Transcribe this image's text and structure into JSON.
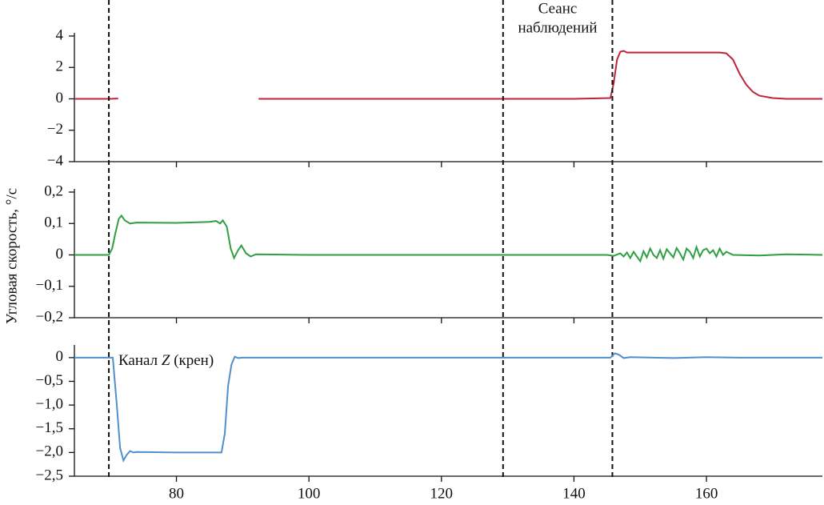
{
  "chart_data": [
    {
      "type": "line",
      "xlim": [
        64.6,
        177.5
      ],
      "ylim": [
        -4,
        4
      ],
      "yticks": [
        4,
        2,
        0,
        {
          "value": -2,
          "label": "−2"
        },
        {
          "value": -4,
          "label": "−4"
        }
      ],
      "vlines": [
        69.8,
        129.3,
        145.8
      ],
      "annotations": [
        {
          "text": [
            "Сеанс",
            "наблюдений"
          ]
        }
      ],
      "x": [
        64.6,
        70,
        71.2,
        71.5,
        92.4,
        100,
        140,
        145.5,
        146,
        146.5,
        147,
        147.5,
        148,
        155,
        162,
        163,
        164,
        165,
        166,
        167,
        168,
        170,
        172,
        177.5
      ],
      "series": [
        {
          "color": "#c0243a",
          "values": [
            0,
            0,
            0.02,
            null,
            0,
            0,
            0,
            0.05,
            1.0,
            2.5,
            3.0,
            3.05,
            2.95,
            2.95,
            2.95,
            2.9,
            2.5,
            1.6,
            0.9,
            0.45,
            0.2,
            0.05,
            0,
            0
          ]
        }
      ]
    },
    {
      "type": "line",
      "xlim": [
        64.6,
        177.5
      ],
      "ylim": [
        -0.2,
        0.2
      ],
      "ylabel": "Угловая скорость, °/с",
      "yticks": [
        {
          "value": 0.2,
          "label": "0,2"
        },
        {
          "value": 0.1,
          "label": "0,1"
        },
        0,
        {
          "value": -0.1,
          "label": "−0,1"
        },
        {
          "value": -0.2,
          "label": "−0,2"
        }
      ],
      "x": [
        64.6,
        69.8,
        70.3,
        70.8,
        71.3,
        71.7,
        72.2,
        73,
        74,
        80,
        85,
        86,
        86.6,
        87,
        87.6,
        88.2,
        88.7,
        89.3,
        89.8,
        90.5,
        91.2,
        92,
        100,
        110,
        120,
        130,
        140,
        145,
        146,
        147,
        147.5,
        148,
        148.5,
        149,
        149.5,
        150,
        150.5,
        151,
        151.5,
        152,
        152.5,
        153,
        153.5,
        154,
        154.5,
        155,
        155.5,
        156,
        156.5,
        157,
        157.5,
        158,
        158.5,
        159,
        159.5,
        160,
        160.5,
        161,
        161.5,
        162,
        162.5,
        163,
        164,
        168,
        172,
        177.5
      ],
      "series": [
        {
          "color": "#2ea043",
          "values": [
            0,
            0,
            0.02,
            0.07,
            0.115,
            0.125,
            0.11,
            0.1,
            0.103,
            0.102,
            0.105,
            0.108,
            0.1,
            0.11,
            0.09,
            0.02,
            -0.01,
            0.015,
            0.03,
            0.005,
            -0.005,
            0.002,
            0,
            0,
            0,
            0,
            0,
            0,
            -0.003,
            0.005,
            -0.005,
            0.008,
            -0.01,
            0.01,
            -0.005,
            -0.02,
            0.012,
            -0.008,
            0.02,
            0,
            -0.01,
            0.015,
            -0.012,
            0.018,
            0.005,
            -0.008,
            0.022,
            0.005,
            -0.015,
            0.02,
            0.01,
            -0.01,
            0.025,
            -0.005,
            0.015,
            0.02,
            0.005,
            0.015,
            -0.005,
            0.02,
            0,
            0.01,
            0,
            -0.002,
            0.002,
            0
          ]
        }
      ]
    },
    {
      "type": "line",
      "xlim": [
        64.6,
        177.5
      ],
      "ylim": [
        -2.5,
        0.2
      ],
      "yticks": [
        0,
        {
          "value": -0.5,
          "label": "−0,5"
        },
        {
          "value": -1,
          "label": "−1,0"
        },
        {
          "value": -1.5,
          "label": "−1,5"
        },
        {
          "value": -2,
          "label": "−2,0"
        },
        {
          "value": -2.5,
          "label": "−2,5"
        }
      ],
      "xticks": [
        80,
        100,
        120,
        140,
        160
      ],
      "annotations": [
        {
          "text": [
            "Канал ",
            "Z",
            " (крен)"
          ]
        }
      ],
      "x": [
        64.6,
        70.4,
        71,
        71.5,
        72,
        72.5,
        73,
        73.5,
        74,
        80,
        86,
        86.8,
        87.3,
        87.8,
        88.3,
        88.8,
        89.3,
        90,
        100,
        140,
        145.5,
        146.2,
        146.8,
        147.5,
        148.5,
        155,
        160,
        165,
        177.5
      ],
      "series": [
        {
          "color": "#4f8fcc",
          "values": [
            0,
            0,
            -1,
            -1.9,
            -2.17,
            -2.05,
            -1.97,
            -2.0,
            -1.99,
            -2.0,
            -2.0,
            -2.0,
            -1.6,
            -0.6,
            -0.15,
            0.02,
            -0.01,
            0,
            0,
            0,
            0,
            0.09,
            0.06,
            -0.01,
            0.01,
            -0.01,
            0.01,
            0,
            0
          ]
        }
      ]
    }
  ]
}
